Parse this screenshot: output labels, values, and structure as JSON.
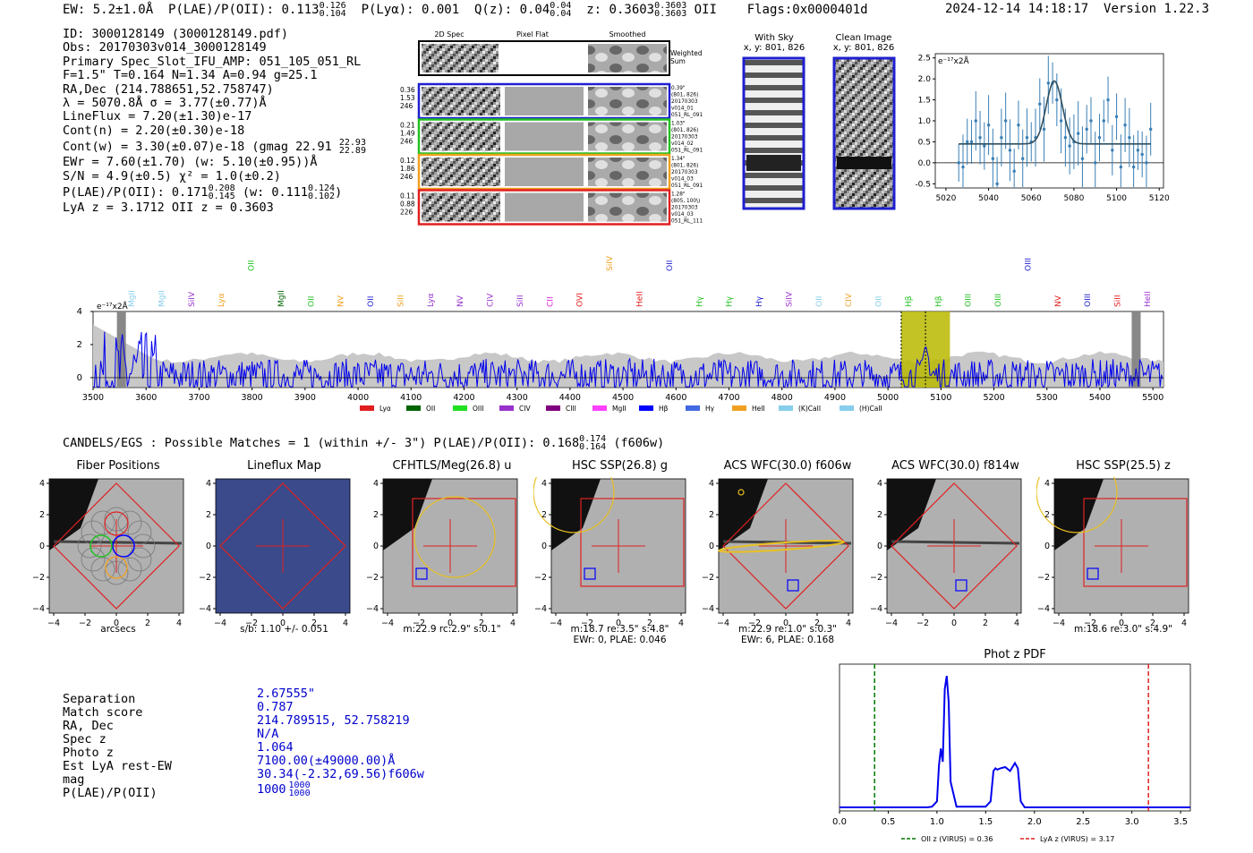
{
  "header": {
    "ew": "EW: 5.2±1.0Å",
    "plae_label": "P(LAE)/P(OII): 0.113",
    "plae_hi": "0.126",
    "plae_lo": "0.104",
    "plya": "P(Lyα): 0.001",
    "qz_label": "Q(z): 0.04",
    "qz_hi": "0.04",
    "qz_lo": "0.04",
    "z_label": "z: 0.3603",
    "z_hi": "0.3603",
    "z_lo": "0.3603",
    "z_line": "OII",
    "flags": "Flags:0x0000401d",
    "datetime": "2024-12-14 14:18:17",
    "version": "Version 1.22.3"
  },
  "info": {
    "id": "ID: 3000128149 (3000128149.pdf)",
    "obs": "Obs: 20170303v014_3000128149",
    "slot": "Primary Spec_Slot_IFU_AMP: 051_105_051_RL",
    "params": "F=1.5\"  T=0.164  N=1.34  A=0.94  g=25.1",
    "radec": "RA,Dec (214.788651,52.758747)",
    "lambda": "λ = 5070.8Å   σ = 3.77(±0.77)Å",
    "lineflux": "LineFlux = 7.20(±1.30)e-17",
    "contn": "Cont(n) = 2.20(±0.30)e-18",
    "contw": "Cont(w) = 3.30(±0.07)e-18 (gmag 22.91",
    "gmag_hi": "22.93",
    "gmag_lo": "22.89",
    "ewr": "EWr = 7.60(±1.70) (w: 5.10(±0.95))Å",
    "sn": "S/N = 4.9(±0.5)  χ² = 1.0(±0.2)",
    "plae": "P(LAE)/P(OII): 0.171",
    "plae_hi": "0.208",
    "plae_lo": "0.145",
    "plae_w": "(w: 0.111",
    "plae_w_hi": "0.124",
    "plae_w_lo": "0.102",
    "plae_w_close": ")",
    "lya": "LyA z = 3.1712   OII z = 0.3603"
  },
  "twod": {
    "col_titles": [
      "2D Spec",
      "Pixel Flat",
      "Smoothed"
    ],
    "weighted": "Weighted\nSum",
    "rows": [
      {
        "left": [
          "0.36",
          "1.53",
          "246"
        ],
        "right": [
          "0.39\"",
          "(801, 826)",
          "20170303",
          "v014_01",
          "051_RL_091"
        ],
        "color": "#1f1fd0"
      },
      {
        "left": [
          "0.21",
          "1.49",
          "246"
        ],
        "right": [
          "1.03\"",
          "(801, 826)",
          "20170303",
          "v014_02",
          "051_RL_091"
        ],
        "color": "#22c022"
      },
      {
        "left": [
          "0.12",
          "1.86",
          "246"
        ],
        "right": [
          "1.34\"",
          "(801, 826)",
          "20170303",
          "v014_03",
          "051_RL_091"
        ],
        "color": "#f0a020"
      },
      {
        "left": [
          "0.11",
          "0.88",
          "226"
        ],
        "right": [
          "1.28\"",
          "(805, 100\\)",
          "20170303",
          "v014_03",
          "051_RL_111"
        ],
        "color": "#e02020"
      }
    ]
  },
  "sky": {
    "with_sky": "With Sky",
    "with_sky_xy": "x, y: 801, 826",
    "clean": "Clean Image",
    "clean_xy": "x, y: 801, 826"
  },
  "line_fit": {
    "ylabel": "e⁻¹⁷x2Å",
    "yticks": [
      "2.5",
      "2.0",
      "1.5",
      "1.0",
      "0.5",
      "0.0",
      "-0.5"
    ],
    "xticks": [
      "5020",
      "5040",
      "5060",
      "5080",
      "5100",
      "5120"
    ]
  },
  "spectrum": {
    "ylabel": "e⁻¹⁷x2Å",
    "yticks": [
      "4",
      "2",
      "0"
    ],
    "xticks": [
      "3500",
      "3600",
      "3700",
      "3800",
      "3900",
      "4000",
      "4100",
      "4200",
      "4300",
      "4400",
      "4500",
      "4600",
      "4700",
      "4800",
      "4900",
      "5000",
      "5100",
      "5200",
      "5300",
      "5400",
      "5500"
    ],
    "lines": [
      {
        "t": "MgII",
        "c": "#87ceeb"
      },
      {
        "t": "MgII",
        "c": "#87ceeb"
      },
      {
        "t": "SiIV",
        "c": "#9932cc"
      },
      {
        "t": "Lyα",
        "c": "#f0a020"
      },
      {
        "t": "OII",
        "c": "#22c022"
      },
      {
        "t": "MgII",
        "c": "#006400"
      },
      {
        "t": "OII",
        "c": "#22c022"
      },
      {
        "t": "NV",
        "c": "#f0a020"
      },
      {
        "t": "OII",
        "c": "#1f1fd0"
      },
      {
        "t": "SiII",
        "c": "#f0a020"
      },
      {
        "t": "Lyα",
        "c": "#9932cc"
      },
      {
        "t": "NV",
        "c": "#9932cc"
      },
      {
        "t": "CIV",
        "c": "#9932cc"
      },
      {
        "t": "SiII",
        "c": "#9932cc"
      },
      {
        "t": "CII",
        "c": "#e020e0"
      },
      {
        "t": "OVI",
        "c": "#e02020"
      },
      {
        "t": "SiIV",
        "c": "#f0a020"
      },
      {
        "t": "HeII",
        "c": "#e02020"
      },
      {
        "t": "OII",
        "c": "#1f1fd0"
      },
      {
        "t": "Hγ",
        "c": "#22c022"
      },
      {
        "t": "Hγ",
        "c": "#22c022"
      },
      {
        "t": "Hγ",
        "c": "#1f1fd0"
      },
      {
        "t": "SiIV",
        "c": "#9932cc"
      },
      {
        "t": "OII",
        "c": "#87ceeb"
      },
      {
        "t": "CIV",
        "c": "#f0a020"
      },
      {
        "t": "OII",
        "c": "#87ceeb"
      },
      {
        "t": "Hβ",
        "c": "#22c022"
      },
      {
        "t": "Hβ",
        "c": "#22c022"
      },
      {
        "t": "OIII",
        "c": "#22c022"
      },
      {
        "t": "OIII",
        "c": "#22c022"
      },
      {
        "t": "OIII",
        "c": "#1f1fd0"
      },
      {
        "t": "NV",
        "c": "#e02020"
      },
      {
        "t": "OIII",
        "c": "#1f1fd0"
      },
      {
        "t": "SiII",
        "c": "#e02020"
      },
      {
        "t": "HeII",
        "c": "#9932cc"
      }
    ],
    "legend": [
      {
        "t": "Lyα",
        "c": "#e02020"
      },
      {
        "t": "OII",
        "c": "#006400"
      },
      {
        "t": "OIII",
        "c": "#22e022"
      },
      {
        "t": "CIV",
        "c": "#9932cc"
      },
      {
        "t": "CIII",
        "c": "#800080"
      },
      {
        "t": "MgII",
        "c": "#ff40ff"
      },
      {
        "t": "Hβ",
        "c": "#0000ff"
      },
      {
        "t": "Hγ",
        "c": "#4169e1"
      },
      {
        "t": "HeII",
        "c": "#f0a020"
      },
      {
        "t": "(K)CaII",
        "c": "#87ceeb"
      },
      {
        "t": "(H)CaII",
        "c": "#87ceeb"
      }
    ]
  },
  "candels": {
    "prefix": "CANDELS/EGS : Possible Matches = 1 (within +/- 3\")  P(LAE)/P(OII): 0.168",
    "hi": "0.174",
    "lo": "0.164",
    "suffix": "(f606w)"
  },
  "cutouts": [
    {
      "title": "Fiber Positions",
      "cap": [
        "arcsecs"
      ]
    },
    {
      "title": "Lineflux Map",
      "cap": [
        "s/b: 1.10 +/- 0.051"
      ]
    },
    {
      "title": "CFHTLS/Meg(26.8) u",
      "cap": [
        "m:22.9  rc:2.9\"   s:0.1\""
      ]
    },
    {
      "title": "HSC SSP(26.8) g",
      "cap": [
        "m:18.7  re:3.5\"  s:4.8\"",
        "EWr: 0, PLAE: 0.046"
      ]
    },
    {
      "title": "ACS WFC(30.0) f606w",
      "cap": [
        "m:22.9  re:1.0\"   s:0.3\"",
        "EWr: 6, PLAE: 0.168"
      ]
    },
    {
      "title": "ACS WFC(30.0) f814w",
      "cap": [
        ""
      ]
    },
    {
      "title": "HSC SSP(25.5) z",
      "cap": [
        "m:18.6  re:3.0\"  s:4.9\""
      ]
    }
  ],
  "cut_ticks": {
    "y": [
      "4",
      "2",
      "0",
      "−2",
      "−4"
    ],
    "x": [
      "−4",
      "−2",
      "0",
      "2",
      "4"
    ]
  },
  "match": {
    "keys": [
      "Separation",
      "Match score",
      "RA, Dec",
      "Spec z",
      "Photo z",
      "Est LyA rest-EW",
      "mag",
      "P(LAE)/P(OII)"
    ],
    "vals": [
      "2.67555\"",
      "0.787",
      "214.789515, 52.758219",
      "N/A",
      "1.064",
      "7100.00(±49000.00)Å",
      "30.34(-2.32,69.56)f606w",
      "1000"
    ],
    "plae_hi": "1000",
    "plae_lo": "1000"
  },
  "colors": {
    "blue": "#0000ff",
    "green": "#22c022",
    "orange": "#f0a020",
    "red": "#e02020",
    "olive": "#b8b800"
  },
  "chart_data": [
    {
      "type": "line",
      "title": "Line fit",
      "ylabel": "e⁻¹⁷x2Å",
      "xlim": [
        5015,
        5122
      ],
      "ylim": [
        -0.6,
        2.6
      ],
      "x": [
        5026,
        5028,
        5030,
        5032,
        5034,
        5036,
        5038,
        5040,
        5042,
        5044,
        5046,
        5048,
        5050,
        5052,
        5054,
        5056,
        5058,
        5060,
        5062,
        5064,
        5066,
        5068,
        5070,
        5072,
        5074,
        5076,
        5078,
        5080,
        5082,
        5084,
        5086,
        5088,
        5090,
        5092,
        5094,
        5096,
        5098,
        5100,
        5102,
        5104,
        5106,
        5108,
        5110,
        5112,
        5114,
        5116
      ],
      "y": [
        0.0,
        -0.1,
        0.5,
        0.5,
        1.0,
        0.6,
        0.4,
        0.9,
        0.1,
        -0.5,
        0.6,
        1.0,
        0.3,
        -0.2,
        0.9,
        0.1,
        0.6,
        0.5,
        0.6,
        1.4,
        0.8,
        1.9,
        1.9,
        1.5,
        1.0,
        0.6,
        0.4,
        0.5,
        0.7,
        0.1,
        0.8,
        1.0,
        0.0,
        0.6,
        1.0,
        1.5,
        0.3,
        1.1,
        -0.1,
        0.9,
        0.6,
        -0.1,
        0.3,
        0.2,
        0.0,
        0.8
      ],
      "fit": {
        "continuum": 0.45,
        "peak": 1.95,
        "center": 5070.8,
        "sigma": 3.77
      }
    },
    {
      "type": "line",
      "title": "Full spectrum",
      "ylabel": "e⁻¹⁷x2Å",
      "xlim": [
        3500,
        5520
      ],
      "ylim": [
        -0.6,
        4.0
      ],
      "highlight_range": [
        5025,
        5117
      ],
      "line_center": 5070.8
    },
    {
      "type": "line",
      "title": "Phot z PDF",
      "xlim": [
        0.0,
        3.6
      ],
      "xticks": [
        "0.0",
        "0.5",
        "1.0",
        "1.5",
        "2.0",
        "2.5",
        "3.0",
        "3.5"
      ],
      "x": [
        0,
        0.9,
        0.95,
        1.0,
        1.02,
        1.04,
        1.06,
        1.08,
        1.1,
        1.12,
        1.14,
        1.2,
        1.5,
        1.55,
        1.58,
        1.6,
        1.62,
        1.65,
        1.7,
        1.75,
        1.8,
        1.83,
        1.86,
        1.9,
        2.2,
        3.6
      ],
      "y": [
        0.005,
        0.005,
        0.01,
        0.05,
        0.32,
        0.45,
        0.35,
        0.9,
        1.0,
        0.8,
        0.2,
        0.01,
        0.01,
        0.05,
        0.28,
        0.3,
        0.29,
        0.3,
        0.31,
        0.28,
        0.34,
        0.3,
        0.05,
        0.005,
        0.005,
        0.005
      ],
      "vlines": [
        {
          "x": 0.36,
          "label": "OII z (VIRUS) = 0.36",
          "color": "#007700"
        },
        {
          "x": 3.17,
          "label": "LyA z (VIRUS) = 3.17",
          "color": "#e02020"
        }
      ]
    }
  ]
}
